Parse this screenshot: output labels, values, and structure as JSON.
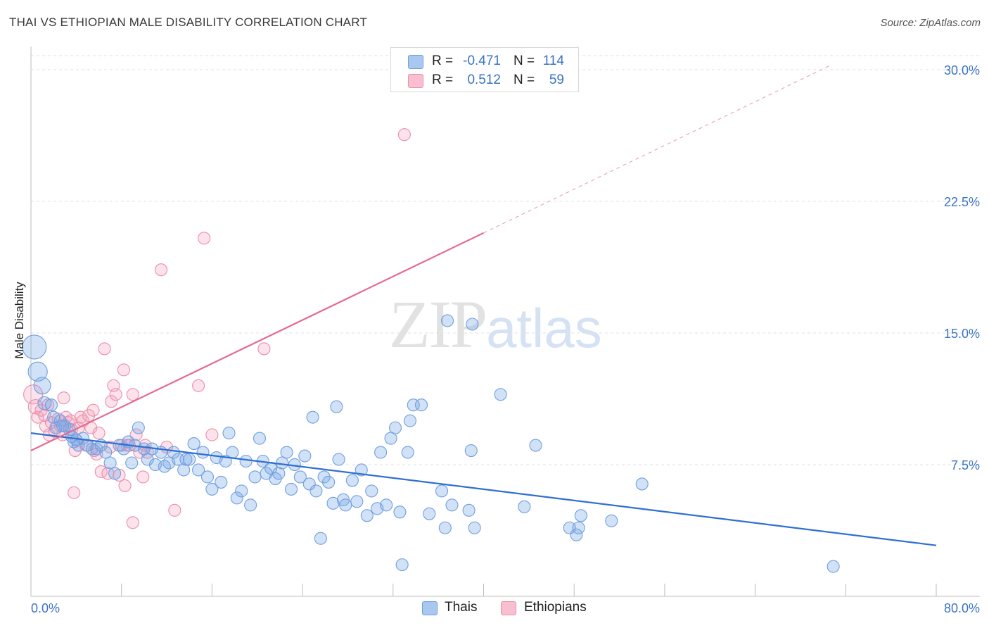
{
  "header": {
    "title": "THAI VS ETHIOPIAN MALE DISABILITY CORRELATION CHART",
    "source": "Source: ZipAtlas.com"
  },
  "watermark": {
    "zip": "ZIP",
    "atlas": "atlas"
  },
  "legend": {
    "rows": [
      {
        "r_label": "R =",
        "r_value": "-0.471",
        "n_label": "N =",
        "n_value": "114",
        "color": "#a9c8f0",
        "border": "#6f9fe0"
      },
      {
        "r_label": "R =",
        "r_value": "0.512",
        "n_label": "N =",
        "n_value": "59",
        "color": "#f8bfd0",
        "border": "#ec8eaa"
      }
    ]
  },
  "bottom_legend": {
    "thais": "Thais",
    "ethiopians": "Ethiopians"
  },
  "colors": {
    "thai_fill": "rgba(124,168,230,0.35)",
    "thai_stroke": "#6f9fe0",
    "thai_line": "#2f6fd0",
    "eth_fill": "rgba(245,160,190,0.30)",
    "eth_stroke": "#ec8eaa",
    "eth_line": "#e66a92",
    "grid": "#e2e2e2",
    "axis_text": "#3b73c4"
  },
  "chart_data": {
    "type": "scatter",
    "title": "THAI VS ETHIOPIAN MALE DISABILITY CORRELATION CHART",
    "xlabel": "",
    "ylabel": "Male Disability",
    "xlim": [
      0,
      80
    ],
    "ylim": [
      0,
      30.8
    ],
    "x_tick_labels": [
      "0.0%",
      "80.0%"
    ],
    "y_ticks": [
      7.5,
      15.0,
      22.5,
      30.0
    ],
    "y_tick_labels": [
      "7.5%",
      "15.0%",
      "22.5%",
      "30.0%"
    ],
    "grid": true,
    "legend_position": "top-center",
    "series": [
      {
        "name": "Thais",
        "R": -0.471,
        "N": 114,
        "trend": {
          "x": [
            0,
            80
          ],
          "y": [
            9.3,
            2.9
          ]
        },
        "points": [
          [
            0.3,
            14.2,
            2
          ],
          [
            0.6,
            12.8,
            1.6
          ],
          [
            1.0,
            12.0,
            1.4
          ],
          [
            1.2,
            11.0,
            1.1
          ],
          [
            1.8,
            10.9,
            1
          ],
          [
            2.0,
            10.2,
            1
          ],
          [
            2.6,
            10.0,
            1
          ],
          [
            3.0,
            9.7,
            1
          ],
          [
            3.4,
            9.5,
            1
          ],
          [
            3.8,
            8.8,
            1
          ],
          [
            3.6,
            9.1,
            1
          ],
          [
            4.2,
            8.6,
            1
          ],
          [
            4.6,
            9.0,
            1
          ],
          [
            5.0,
            8.6,
            1
          ],
          [
            5.4,
            8.4,
            1
          ],
          [
            5.8,
            8.4,
            1
          ],
          [
            6.2,
            8.6,
            1
          ],
          [
            6.6,
            8.2,
            1
          ],
          [
            7.0,
            7.6,
            1
          ],
          [
            7.4,
            7.0,
            1
          ],
          [
            7.8,
            8.6,
            1
          ],
          [
            8.2,
            8.4,
            1
          ],
          [
            8.6,
            8.8,
            1
          ],
          [
            8.9,
            7.6,
            1
          ],
          [
            9.2,
            8.6,
            1
          ],
          [
            9.5,
            9.6,
            1
          ],
          [
            10.0,
            8.4,
            1
          ],
          [
            10.3,
            7.8,
            1
          ],
          [
            10.7,
            8.4,
            1
          ],
          [
            11.0,
            7.5,
            1
          ],
          [
            11.5,
            8.2,
            1
          ],
          [
            11.8,
            7.4,
            1
          ],
          [
            12.2,
            7.6,
            1
          ],
          [
            12.6,
            8.2,
            1
          ],
          [
            13.0,
            7.8,
            1
          ],
          [
            13.5,
            7.2,
            1
          ],
          [
            13.7,
            7.8,
            1
          ],
          [
            14.0,
            7.8,
            1
          ],
          [
            14.4,
            8.7,
            1
          ],
          [
            14.8,
            7.2,
            1
          ],
          [
            15.2,
            8.2,
            1
          ],
          [
            15.6,
            6.8,
            1
          ],
          [
            16.0,
            6.1,
            1
          ],
          [
            16.4,
            7.9,
            1
          ],
          [
            16.8,
            6.5,
            1
          ],
          [
            17.2,
            7.7,
            1
          ],
          [
            17.5,
            9.3,
            1
          ],
          [
            17.8,
            8.2,
            1
          ],
          [
            18.2,
            5.6,
            1
          ],
          [
            18.6,
            6.0,
            1
          ],
          [
            19.0,
            7.7,
            1
          ],
          [
            19.4,
            5.2,
            1
          ],
          [
            19.8,
            6.8,
            1
          ],
          [
            20.2,
            9.0,
            1
          ],
          [
            20.5,
            7.7,
            1
          ],
          [
            20.8,
            7.0,
            1
          ],
          [
            21.2,
            7.3,
            1
          ],
          [
            21.6,
            6.7,
            1
          ],
          [
            21.9,
            7.0,
            1
          ],
          [
            22.2,
            7.6,
            1
          ],
          [
            22.6,
            8.2,
            1
          ],
          [
            23.0,
            6.1,
            1
          ],
          [
            23.3,
            7.5,
            1
          ],
          [
            23.8,
            6.8,
            1
          ],
          [
            24.2,
            8.0,
            1
          ],
          [
            24.6,
            6.4,
            1
          ],
          [
            24.9,
            10.2,
            1
          ],
          [
            25.2,
            6.0,
            1
          ],
          [
            25.6,
            3.3,
            1
          ],
          [
            25.9,
            6.8,
            1
          ],
          [
            26.3,
            6.5,
            1
          ],
          [
            26.7,
            5.3,
            1
          ],
          [
            27.2,
            7.8,
            1
          ],
          [
            27.0,
            10.8,
            1
          ],
          [
            27.6,
            5.5,
            1
          ],
          [
            27.8,
            5.2,
            1
          ],
          [
            28.4,
            6.6,
            1
          ],
          [
            28.8,
            5.4,
            1
          ],
          [
            29.2,
            7.2,
            1
          ],
          [
            29.7,
            4.6,
            1
          ],
          [
            30.1,
            6.0,
            1
          ],
          [
            30.6,
            5.0,
            1
          ],
          [
            30.9,
            8.2,
            1
          ],
          [
            31.4,
            5.2,
            1
          ],
          [
            31.8,
            9.0,
            1
          ],
          [
            32.2,
            9.6,
            1
          ],
          [
            32.6,
            4.8,
            1
          ],
          [
            32.8,
            1.8,
            1
          ],
          [
            33.3,
            8.2,
            1
          ],
          [
            33.5,
            10.0,
            1
          ],
          [
            33.8,
            10.9,
            1
          ],
          [
            34.5,
            10.9,
            1
          ],
          [
            35.2,
            4.7,
            1
          ],
          [
            36.3,
            6.0,
            1
          ],
          [
            36.6,
            3.9,
            1
          ],
          [
            37.2,
            5.2,
            1
          ],
          [
            36.8,
            15.7,
            1
          ],
          [
            38.7,
            4.9,
            1
          ],
          [
            39.0,
            15.5,
            1
          ],
          [
            39.2,
            3.9,
            1
          ],
          [
            38.9,
            8.3,
            1
          ],
          [
            41.5,
            11.5,
            1
          ],
          [
            43.6,
            5.1,
            1
          ],
          [
            44.6,
            8.6,
            1
          ],
          [
            47.6,
            3.9,
            1
          ],
          [
            48.2,
            3.5,
            1
          ],
          [
            48.4,
            3.9,
            1
          ],
          [
            48.6,
            4.6,
            1
          ],
          [
            51.3,
            4.3,
            1
          ],
          [
            54.0,
            6.4,
            1
          ],
          [
            70.9,
            1.7,
            1
          ],
          [
            2.2,
            9.6,
            1
          ],
          [
            2.8,
            9.7,
            1
          ],
          [
            4.0,
            8.9,
            1
          ]
        ]
      },
      {
        "name": "Ethiopians",
        "R": 0.512,
        "N": 59,
        "trend": {
          "x": [
            0,
            40
          ],
          "y": [
            8.3,
            20.7
          ]
        },
        "trend_extension": {
          "x": [
            40,
            70.5
          ],
          "y": [
            20.7,
            30.2
          ]
        },
        "points": [
          [
            0.2,
            11.5,
            1.6
          ],
          [
            0.4,
            10.8,
            1.2
          ],
          [
            0.6,
            10.2,
            1
          ],
          [
            0.9,
            10.6,
            1
          ],
          [
            1.2,
            10.3,
            1
          ],
          [
            1.5,
            10.9,
            1
          ],
          [
            1.3,
            9.7,
            1
          ],
          [
            1.6,
            9.2,
            1
          ],
          [
            1.8,
            9.9,
            1
          ],
          [
            2.1,
            9.4,
            1
          ],
          [
            2.4,
            10.1,
            1
          ],
          [
            2.6,
            9.7,
            1
          ],
          [
            2.8,
            9.2,
            1
          ],
          [
            2.9,
            11.3,
            1
          ],
          [
            3.1,
            10.2,
            1
          ],
          [
            3.3,
            9.9,
            1
          ],
          [
            3.5,
            10.0,
            1
          ],
          [
            3.6,
            9.5,
            1
          ],
          [
            3.9,
            8.3,
            1
          ],
          [
            4.0,
            8.9,
            1
          ],
          [
            4.2,
            9.6,
            1
          ],
          [
            4.4,
            10.2,
            1
          ],
          [
            4.6,
            10.0,
            1
          ],
          [
            4.9,
            8.6,
            1
          ],
          [
            5.1,
            10.3,
            1
          ],
          [
            5.3,
            9.6,
            1
          ],
          [
            5.5,
            10.6,
            1
          ],
          [
            5.6,
            8.3,
            1
          ],
          [
            5.8,
            8.1,
            1
          ],
          [
            6.0,
            9.3,
            1
          ],
          [
            6.2,
            7.1,
            1
          ],
          [
            6.5,
            14.1,
            1
          ],
          [
            6.8,
            7.0,
            1
          ],
          [
            7.0,
            8.5,
            1
          ],
          [
            7.1,
            11.1,
            1
          ],
          [
            7.3,
            12.0,
            1
          ],
          [
            7.5,
            11.5,
            1
          ],
          [
            7.8,
            6.9,
            1
          ],
          [
            8.0,
            8.6,
            1
          ],
          [
            8.2,
            12.9,
            1
          ],
          [
            8.5,
            8.6,
            1
          ],
          [
            8.7,
            8.6,
            1
          ],
          [
            9.0,
            11.5,
            1
          ],
          [
            9.3,
            9.2,
            1
          ],
          [
            9.6,
            8.2,
            1
          ],
          [
            9.9,
            6.8,
            1
          ],
          [
            10.1,
            8.6,
            1
          ],
          [
            10.3,
            8.2,
            1
          ],
          [
            11.5,
            18.6,
            1
          ],
          [
            12.0,
            8.5,
            1
          ],
          [
            12.7,
            4.9,
            1
          ],
          [
            14.8,
            12.0,
            1
          ],
          [
            15.3,
            20.4,
            1
          ],
          [
            16.0,
            9.2,
            1
          ],
          [
            20.6,
            14.1,
            1
          ],
          [
            33.0,
            26.3,
            1
          ],
          [
            3.8,
            5.9,
            1
          ],
          [
            8.3,
            6.3,
            1
          ],
          [
            9.0,
            4.2,
            1
          ]
        ]
      }
    ]
  }
}
